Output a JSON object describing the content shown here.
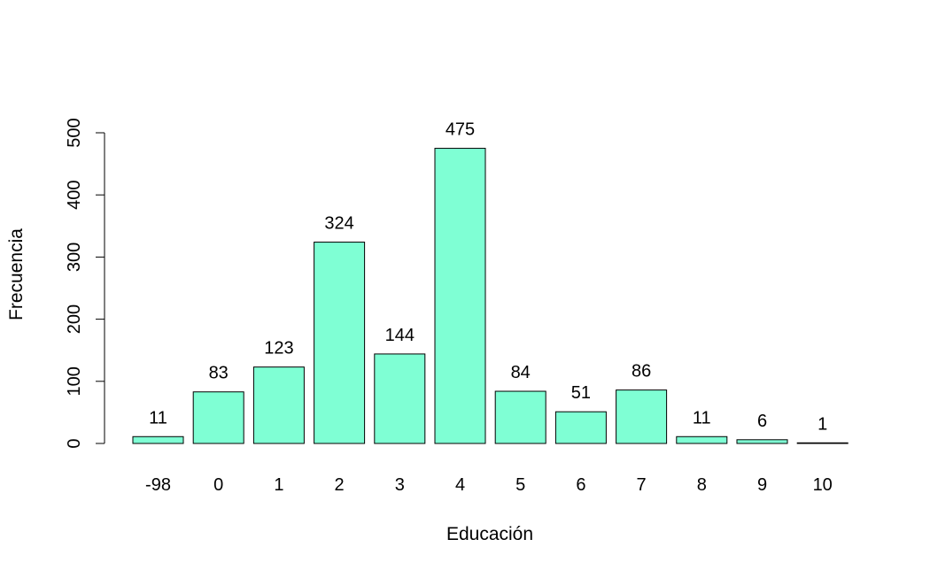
{
  "chart_data": {
    "type": "bar",
    "title": "",
    "xlabel": "Educación",
    "ylabel": "Frecuencia",
    "categories": [
      "-98",
      "0",
      "1",
      "2",
      "3",
      "4",
      "5",
      "6",
      "7",
      "8",
      "9",
      "10"
    ],
    "values": [
      11,
      83,
      123,
      324,
      144,
      475,
      84,
      51,
      86,
      11,
      6,
      1
    ],
    "data_labels": [
      "11",
      "83",
      "123",
      "324",
      "144",
      "475",
      "84",
      "51",
      "86",
      "11",
      "6",
      "1"
    ],
    "ylim": [
      0,
      500
    ],
    "yticks": [
      0,
      100,
      200,
      300,
      400,
      500
    ],
    "ytick_labels": [
      "0",
      "100",
      "200",
      "300",
      "400",
      "500"
    ],
    "grid": false,
    "bar_color": "#7FFFD4"
  }
}
